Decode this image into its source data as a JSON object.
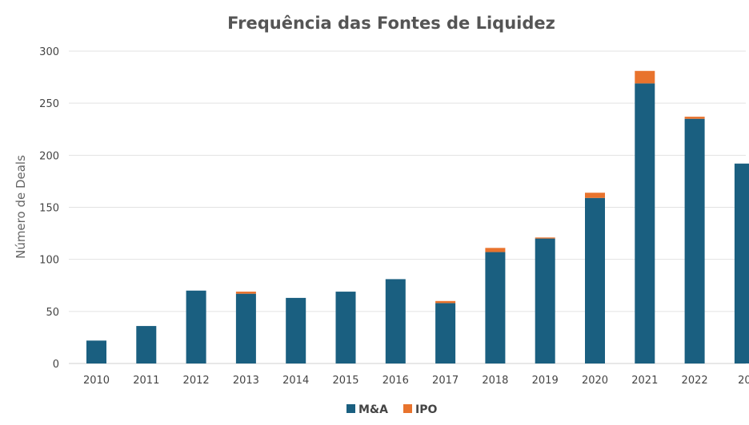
{
  "chart_data": {
    "type": "bar",
    "stacked": true,
    "title": "Frequência das Fontes de Liquidez",
    "xlabel": "",
    "ylabel": "Número de Deals",
    "ylim": [
      0,
      300
    ],
    "yticks": [
      0,
      50,
      100,
      150,
      200,
      250,
      300
    ],
    "grid": true,
    "legend_position": "bottom-center",
    "categories": [
      "2010",
      "2011",
      "2012",
      "2013",
      "2014",
      "2015",
      "2016",
      "2017",
      "2018",
      "2019",
      "2020",
      "2021",
      "2022",
      "20"
    ],
    "series": [
      {
        "name": "M&A",
        "color": "#1a5f80",
        "values": [
          22,
          36,
          70,
          67,
          63,
          69,
          81,
          58,
          107,
          120,
          159,
          269,
          235,
          192
        ]
      },
      {
        "name": "IPO",
        "color": "#e8732d",
        "values": [
          0,
          0,
          0,
          2,
          0,
          0,
          0,
          2,
          4,
          1,
          5,
          12,
          2,
          0
        ]
      }
    ]
  }
}
